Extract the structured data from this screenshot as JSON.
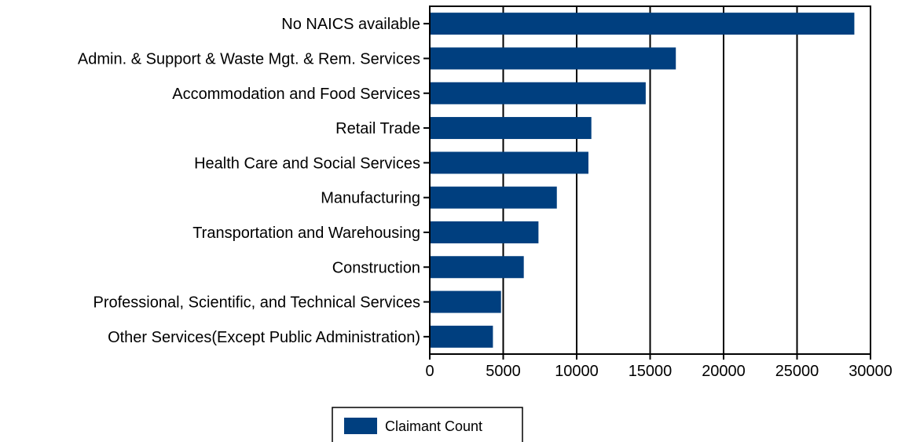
{
  "chart_data": {
    "type": "bar",
    "orientation": "horizontal",
    "categories": [
      "No NAICS available",
      "Admin. & Support & Waste Mgt. & Rem. Services",
      "Accommodation and Food Services",
      "Retail Trade",
      "Health Care and Social Services",
      "Manufacturing",
      "Transportation and Warehousing",
      "Construction",
      "Professional, Scientific, and Technical Services",
      "Other Services(Except Public Administration)"
    ],
    "series": [
      {
        "name": "Claimant Count",
        "color": "#003F7F",
        "values": [
          28900,
          16750,
          14700,
          11000,
          10800,
          8650,
          7400,
          6400,
          4850,
          4300
        ]
      }
    ],
    "xlim": [
      0,
      30000
    ],
    "xticks": [
      "0",
      "5000",
      "10000",
      "15000",
      "20000",
      "25000",
      "30000"
    ],
    "grid": "vertical",
    "legend_position": "bottom-center"
  }
}
